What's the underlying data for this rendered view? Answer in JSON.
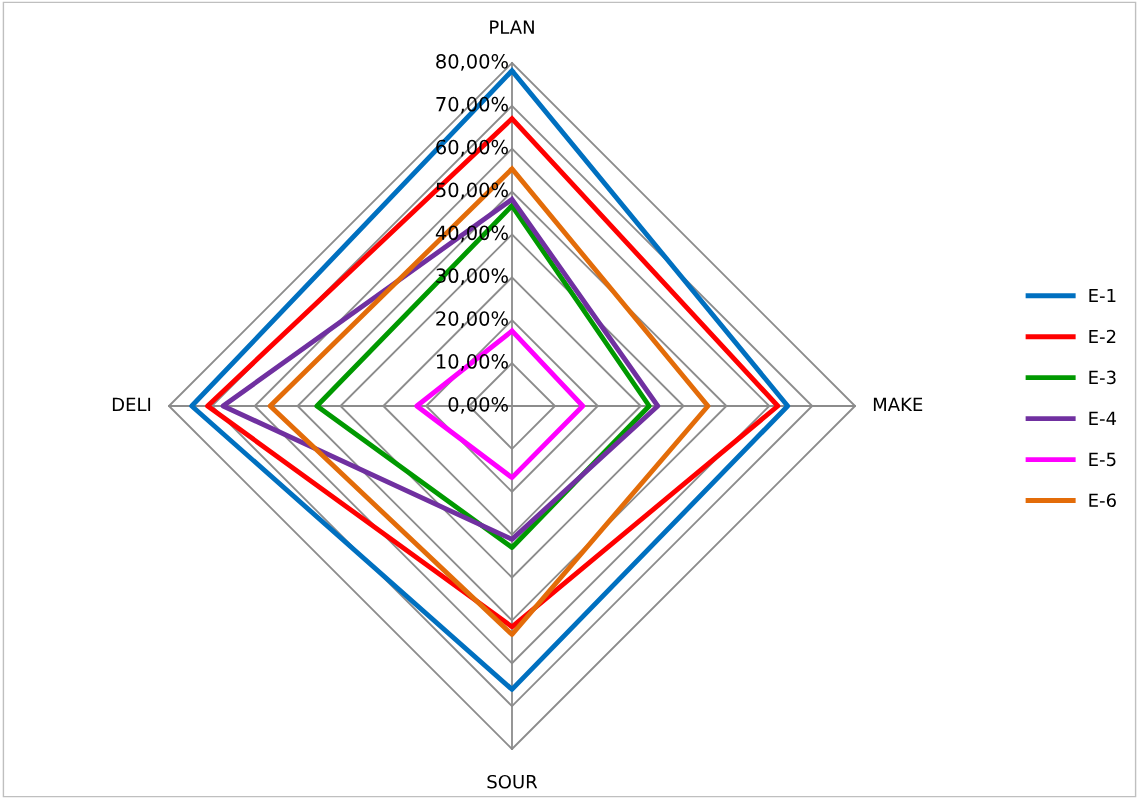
{
  "chart_data": {
    "type": "radar",
    "categories": [
      "PLAN",
      "MAKE",
      "SOUR",
      "DELI"
    ],
    "ylim": [
      0,
      80
    ],
    "yticks": [
      {
        "value": 0,
        "label": "0,00%"
      },
      {
        "value": 10,
        "label": "10,00%"
      },
      {
        "value": 20,
        "label": "20,00%"
      },
      {
        "value": 30,
        "label": "30,00%"
      },
      {
        "value": 40,
        "label": "40,00%"
      },
      {
        "value": 50,
        "label": "50,00%"
      },
      {
        "value": 60,
        "label": "60,00%"
      },
      {
        "value": 70,
        "label": "70,00%"
      },
      {
        "value": 80,
        "label": "80,00%"
      }
    ],
    "grid": true,
    "legend": "right",
    "marker": "none",
    "series": [
      {
        "name": "E-1",
        "color": "#0070c0",
        "values": [
          78.2,
          64.3,
          66.1,
          74.7
        ]
      },
      {
        "name": "E-2",
        "color": "#ff0000",
        "values": [
          67,
          62,
          51.5,
          71
        ]
      },
      {
        "name": "E-3",
        "color": "#009900",
        "values": [
          46.7,
          32,
          33,
          45.5
        ]
      },
      {
        "name": "E-4",
        "color": "#7030a0",
        "values": [
          48.2,
          34,
          31.1,
          67.4
        ]
      },
      {
        "name": "E-5",
        "color": "#ff00ff",
        "values": [
          17.5,
          16.5,
          16.7,
          22.2
        ]
      },
      {
        "name": "E-6",
        "color": "#e36c09",
        "values": [
          55.3,
          45.7,
          53.3,
          56.4
        ]
      }
    ]
  }
}
